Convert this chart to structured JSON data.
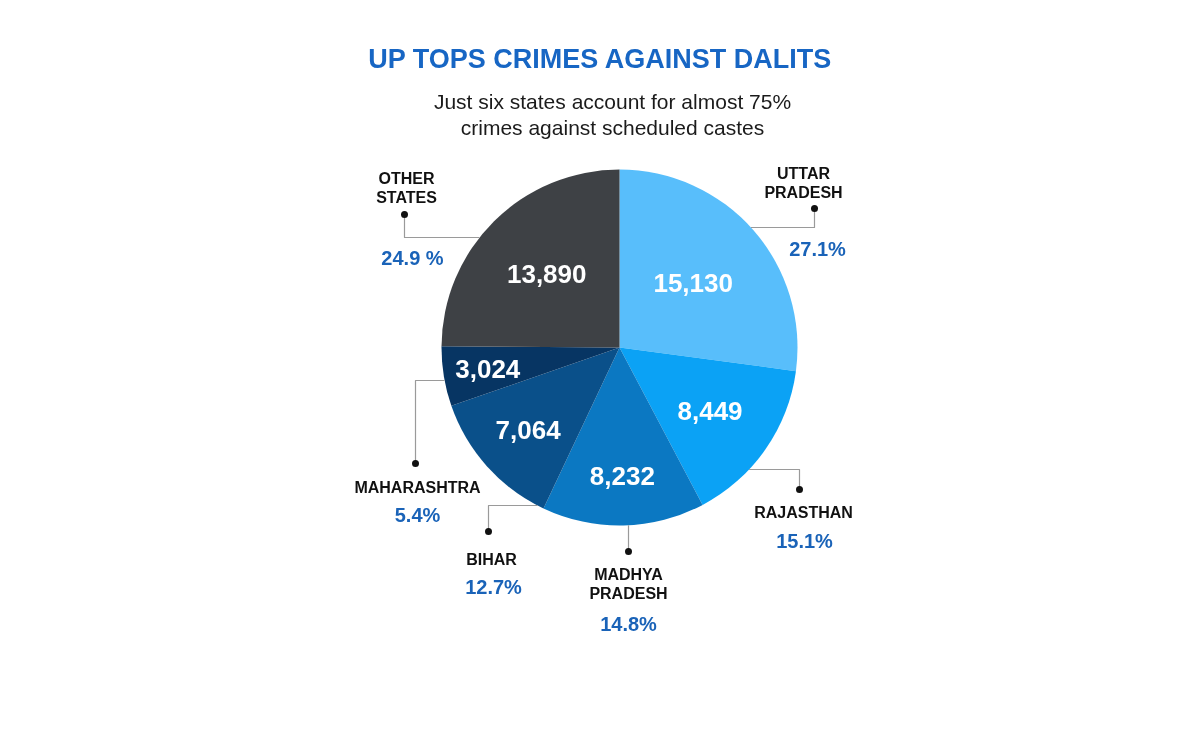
{
  "chart_data": {
    "type": "pie",
    "title": "UP TOPS CRIMES AGAINST DALITS",
    "subtitle": "Just six states account for almost 75% crimes against scheduled castes",
    "categories": [
      "UTTAR PRADESH",
      "RAJASTHAN",
      "MADHYA PRADESH",
      "BIHAR",
      "MAHARASHTRA",
      "OTHER STATES"
    ],
    "values": [
      15130,
      8449,
      8232,
      7064,
      3024,
      13890
    ],
    "colors": [
      "#58befb",
      "#0ba2f5",
      "#0b78c2",
      "#0a508a",
      "#073563",
      "#3e4145"
    ],
    "value_labels": [
      "15,130",
      "8,449",
      "8,232",
      "7,064",
      "3,024",
      "13,890"
    ],
    "annotations": [
      {
        "text": "27.1%",
        "x": "UTTAR PRADESH"
      },
      {
        "text": "15.1%",
        "x": "RAJASTHAN"
      },
      {
        "text": "14.8%",
        "x": "MADHYA PRADESH"
      },
      {
        "text": "12.7%",
        "x": "BIHAR"
      },
      {
        "text": "5.4%",
        "x": "MAHARASHTRA"
      },
      {
        "text": "24.9 %",
        "x": "OTHER STATES"
      }
    ]
  }
}
